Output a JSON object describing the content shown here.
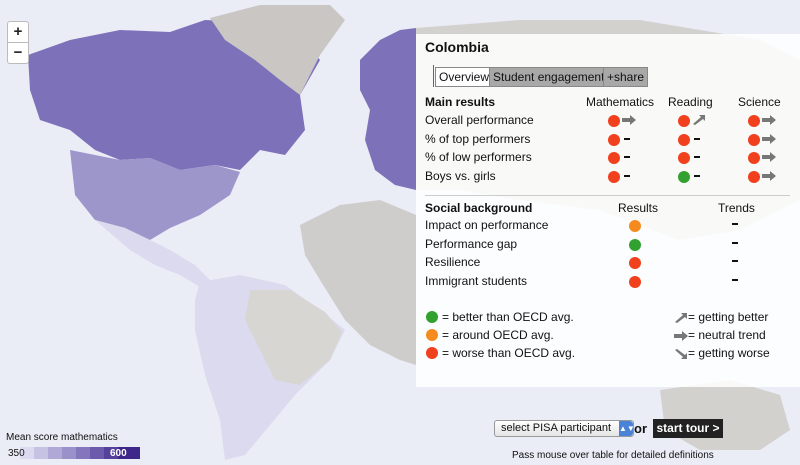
{
  "zoom": {
    "in_label": "+",
    "out_label": "−"
  },
  "country": "Colombia",
  "tabs": [
    {
      "label": "Overview",
      "active": true
    },
    {
      "label": "Student engagement",
      "active": false
    },
    {
      "label": "+share",
      "active": false
    }
  ],
  "main_results": {
    "header": "Main results",
    "columns": [
      "Mathematics",
      "Reading",
      "Science"
    ],
    "rows": [
      {
        "label": "Overall performance",
        "cells": [
          [
            "red",
            "neutral"
          ],
          [
            "red",
            "better"
          ],
          [
            "red",
            "neutral"
          ]
        ]
      },
      {
        "label": "% of top performers",
        "cells": [
          [
            "red",
            "none"
          ],
          [
            "red",
            "none"
          ],
          [
            "red",
            "neutral"
          ]
        ]
      },
      {
        "label": "% of low performers",
        "cells": [
          [
            "red",
            "none"
          ],
          [
            "red",
            "none"
          ],
          [
            "red",
            "neutral"
          ]
        ]
      },
      {
        "label": "Boys vs. girls",
        "cells": [
          [
            "red",
            "none"
          ],
          [
            "green",
            "none"
          ],
          [
            "red",
            "neutral"
          ]
        ]
      }
    ]
  },
  "social_background": {
    "header": "Social background",
    "col_results": "Results",
    "col_trends": "Trends",
    "rows": [
      {
        "label": "Impact on performance",
        "result": "orange",
        "trend": "none"
      },
      {
        "label": "Performance gap",
        "result": "green",
        "trend": "none"
      },
      {
        "label": "Resilience",
        "result": "red",
        "trend": "none"
      },
      {
        "label": "Immigrant students",
        "result": "red",
        "trend": "none"
      }
    ]
  },
  "key": {
    "better": "= better than OECD avg.",
    "around": "= around OECD avg.",
    "worse": "= worse than OECD avg.",
    "getting_better": "= getting better",
    "neutral": "= neutral trend",
    "getting_worse": "= getting worse"
  },
  "colors": {
    "red": "#f0401e",
    "green": "#33a12f",
    "orange": "#f58b1f",
    "arrow": "#777777"
  },
  "controls": {
    "select_label": "select PISA participant",
    "or_label": "or",
    "tour_label": "start tour >",
    "hint": "Pass mouse over table for detailed definitions"
  },
  "legend": {
    "title": "Mean score mathematics",
    "min": "350",
    "max": "600",
    "swatches": [
      "#ececf6",
      "#dcdaee",
      "#c6c2e3",
      "#b0a9d7",
      "#9a90ca",
      "#8476bd",
      "#6c5aac",
      "#55409c",
      "#3f2789"
    ]
  }
}
